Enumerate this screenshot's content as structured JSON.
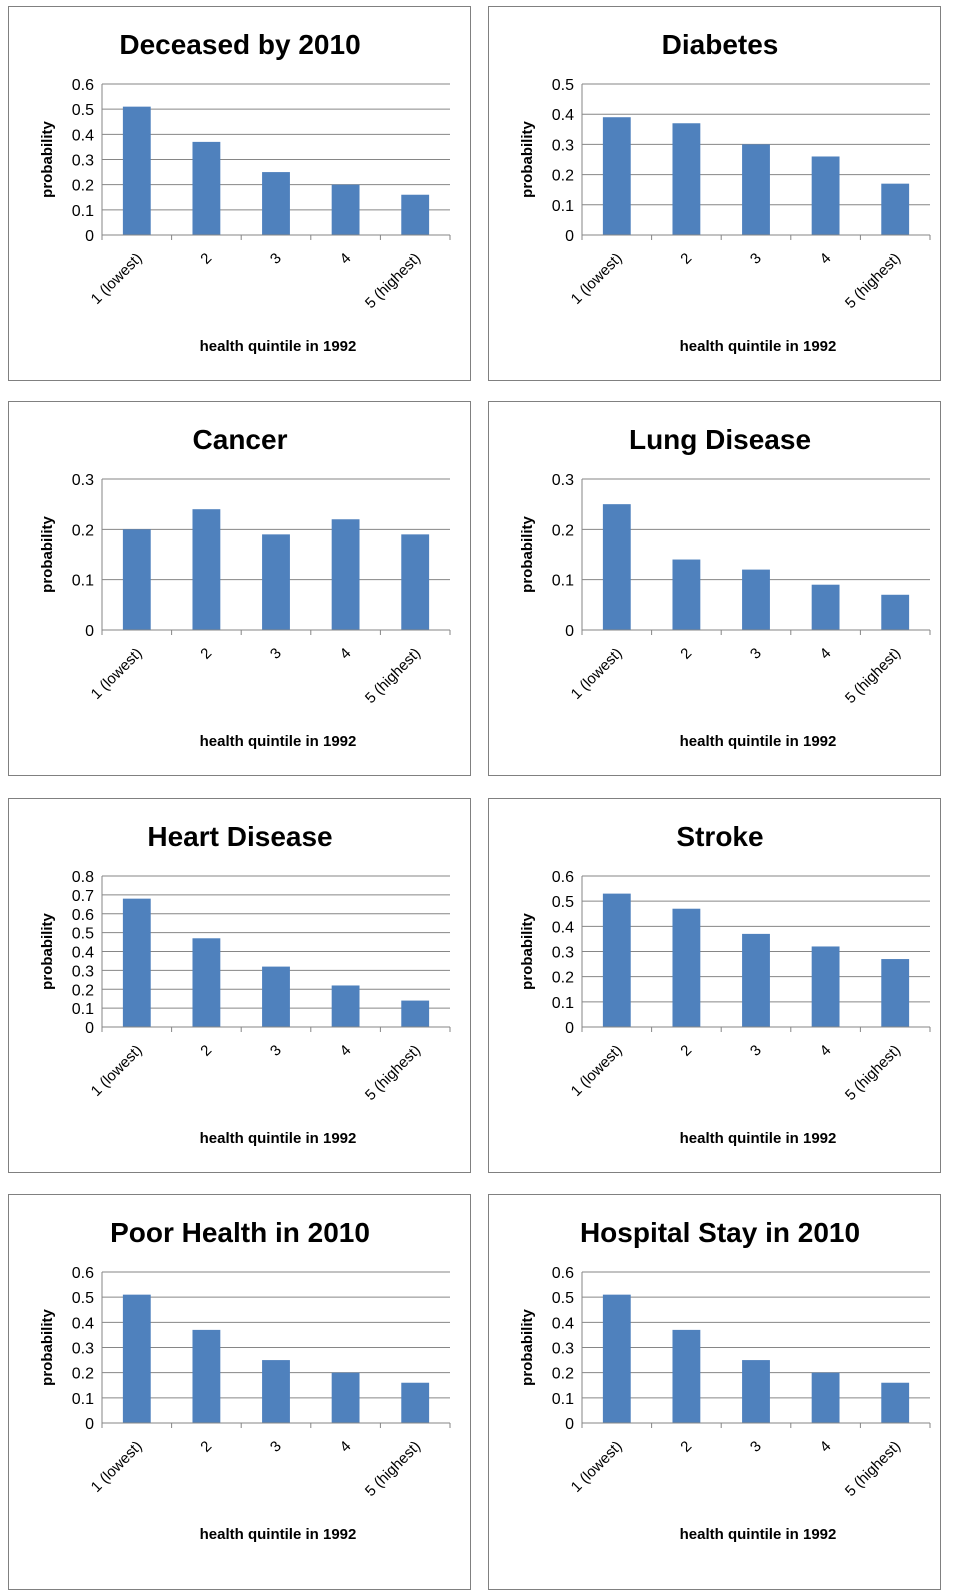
{
  "chart_data": [
    {
      "type": "bar",
      "title": "Deceased by 2010",
      "ylabel": "probability",
      "xlabel": "health quintile in 1992",
      "color": "#4f81bd",
      "grid": true,
      "categories": [
        "1 (lowest)",
        "2",
        "3",
        "4",
        "5 (highest)"
      ],
      "values": [
        0.51,
        0.37,
        0.25,
        0.2,
        0.16
      ],
      "ylim": [
        0,
        0.6
      ],
      "yticks": [
        0,
        0.1,
        0.2,
        0.3,
        0.4,
        0.5,
        0.6
      ]
    },
    {
      "type": "bar",
      "title": "Diabetes",
      "ylabel": "probability",
      "xlabel": "health quintile in 1992",
      "color": "#4f81bd",
      "grid": true,
      "categories": [
        "1 (lowest)",
        "2",
        "3",
        "4",
        "5 (highest)"
      ],
      "values": [
        0.39,
        0.37,
        0.3,
        0.26,
        0.17
      ],
      "ylim": [
        0,
        0.5
      ],
      "yticks": [
        0,
        0.1,
        0.2,
        0.3,
        0.4,
        0.5
      ]
    },
    {
      "type": "bar",
      "title": "Cancer",
      "ylabel": "probability",
      "xlabel": "health quintile in 1992",
      "color": "#4f81bd",
      "grid": true,
      "categories": [
        "1 (lowest)",
        "2",
        "3",
        "4",
        "5 (highest)"
      ],
      "values": [
        0.2,
        0.24,
        0.19,
        0.22,
        0.19
      ],
      "ylim": [
        0,
        0.3
      ],
      "yticks": [
        0,
        0.1,
        0.2,
        0.3
      ]
    },
    {
      "type": "bar",
      "title": "Lung Disease",
      "ylabel": "probability",
      "xlabel": "health quintile in 1992",
      "color": "#4f81bd",
      "grid": true,
      "categories": [
        "1 (lowest)",
        "2",
        "3",
        "4",
        "5 (highest)"
      ],
      "values": [
        0.25,
        0.14,
        0.12,
        0.09,
        0.07
      ],
      "ylim": [
        0,
        0.3
      ],
      "yticks": [
        0,
        0.1,
        0.2,
        0.3
      ]
    },
    {
      "type": "bar",
      "title": "Heart Disease",
      "ylabel": "probability",
      "xlabel": "health quintile in 1992",
      "color": "#4f81bd",
      "grid": true,
      "categories": [
        "1 (lowest)",
        "2",
        "3",
        "4",
        "5 (highest)"
      ],
      "values": [
        0.68,
        0.47,
        0.32,
        0.22,
        0.14
      ],
      "ylim": [
        0,
        0.8
      ],
      "yticks": [
        0,
        0.1,
        0.2,
        0.3,
        0.4,
        0.5,
        0.6,
        0.7,
        0.8
      ]
    },
    {
      "type": "bar",
      "title": "Stroke",
      "ylabel": "probability",
      "xlabel": "health quintile in 1992",
      "color": "#4f81bd",
      "grid": true,
      "categories": [
        "1 (lowest)",
        "2",
        "3",
        "4",
        "5 (highest)"
      ],
      "values": [
        0.53,
        0.47,
        0.37,
        0.32,
        0.27
      ],
      "ylim": [
        0,
        0.6
      ],
      "yticks": [
        0,
        0.1,
        0.2,
        0.3,
        0.4,
        0.5,
        0.6
      ]
    },
    {
      "type": "bar",
      "title": "Poor Health in 2010",
      "ylabel": "probability",
      "xlabel": "health quintile in 1992",
      "color": "#4f81bd",
      "grid": true,
      "categories": [
        "1 (lowest)",
        "2",
        "3",
        "4",
        "5 (highest)"
      ],
      "values": [
        0.51,
        0.37,
        0.25,
        0.2,
        0.16
      ],
      "ylim": [
        0,
        0.6
      ],
      "yticks": [
        0,
        0.1,
        0.2,
        0.3,
        0.4,
        0.5,
        0.6
      ]
    },
    {
      "type": "bar",
      "title": "Hospital Stay in 2010",
      "ylabel": "probability",
      "xlabel": "health quintile in 1992",
      "color": "#4f81bd",
      "grid": true,
      "categories": [
        "1 (lowest)",
        "2",
        "3",
        "4",
        "5 (highest)"
      ],
      "values": [
        0.51,
        0.37,
        0.25,
        0.2,
        0.16
      ],
      "ylim": [
        0,
        0.6
      ],
      "yticks": [
        0,
        0.1,
        0.2,
        0.3,
        0.4,
        0.5,
        0.6
      ]
    }
  ]
}
